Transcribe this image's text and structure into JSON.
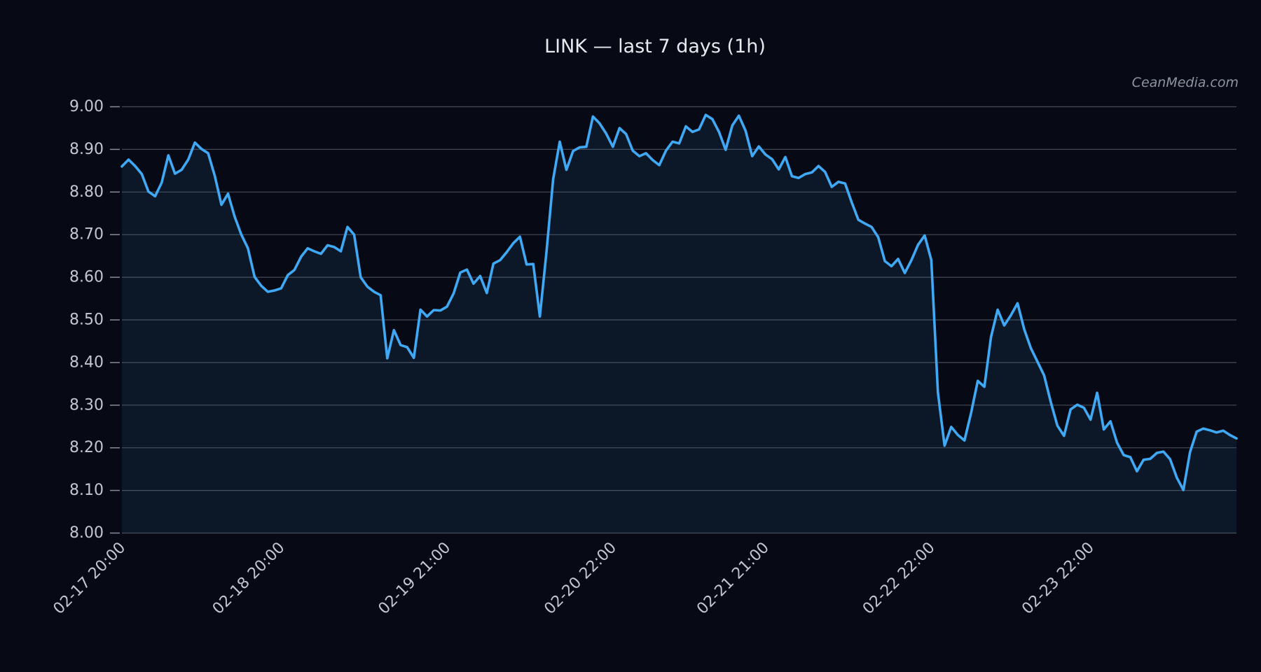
{
  "chart_data": {
    "type": "line",
    "title": "LINK — last 7 days (1h)",
    "watermark": "CeanMedia.com",
    "legend_position": "none",
    "grid": "horizontal",
    "x_axis": {
      "tick_labels": [
        "02-17 20:00",
        "02-18 20:00",
        "02-19 21:00",
        "02-20 22:00",
        "02-21 21:00",
        "02-22 22:00",
        "02-23 22:00"
      ],
      "tick_point_indices": [
        0,
        24,
        49,
        74,
        97,
        122,
        146
      ],
      "tick_rotation_deg": 45,
      "num_points": 169,
      "step": "1h"
    },
    "y_axis": {
      "tick_labels": [
        "8.00",
        "8.10",
        "8.20",
        "8.30",
        "8.40",
        "8.50",
        "8.60",
        "8.70",
        "8.80",
        "8.90",
        "9.00"
      ],
      "ylim": [
        8.0,
        9.0
      ]
    },
    "colors": {
      "line": "#3fa9f5",
      "area_fill": "rgba(63,169,245,0.09)",
      "background": "#070a14",
      "gridline": "#454a56",
      "tick_mark": "#878b9b",
      "tick_text": "#c3c6d1",
      "title_text": "#e7e9ee",
      "watermark_text": "#8e93a4"
    },
    "series": [
      {
        "name": "LINK",
        "values": [
          8.86,
          8.876,
          8.861,
          8.842,
          8.801,
          8.79,
          8.822,
          8.886,
          8.843,
          8.852,
          8.876,
          8.916,
          8.901,
          8.891,
          8.838,
          8.77,
          8.796,
          8.742,
          8.7,
          8.668,
          8.601,
          8.58,
          8.566,
          8.569,
          8.574,
          8.605,
          8.617,
          8.648,
          8.668,
          8.661,
          8.655,
          8.675,
          8.671,
          8.661,
          8.718,
          8.7,
          8.6,
          8.578,
          8.566,
          8.558,
          8.41,
          8.476,
          8.441,
          8.436,
          8.411,
          8.524,
          8.508,
          8.523,
          8.522,
          8.531,
          8.562,
          8.611,
          8.618,
          8.585,
          8.603,
          8.563,
          8.632,
          8.64,
          8.659,
          8.68,
          8.695,
          8.63,
          8.631,
          8.508,
          8.66,
          8.83,
          8.918,
          8.852,
          8.896,
          8.905,
          8.906,
          8.977,
          8.961,
          8.937,
          8.906,
          8.95,
          8.936,
          8.897,
          8.884,
          8.891,
          8.875,
          8.863,
          8.897,
          8.918,
          8.914,
          8.954,
          8.941,
          8.947,
          8.981,
          8.971,
          8.941,
          8.899,
          8.956,
          8.979,
          8.944,
          8.884,
          8.907,
          8.888,
          8.877,
          8.853,
          8.882,
          8.837,
          8.833,
          8.842,
          8.846,
          8.861,
          8.847,
          8.812,
          8.824,
          8.82,
          8.776,
          8.735,
          8.726,
          8.718,
          8.694,
          8.638,
          8.626,
          8.643,
          8.61,
          8.64,
          8.676,
          8.698,
          8.64,
          8.33,
          8.205,
          8.249,
          8.23,
          8.217,
          8.282,
          8.357,
          8.343,
          8.46,
          8.524,
          8.487,
          8.511,
          8.539,
          8.478,
          8.434,
          8.402,
          8.37,
          8.308,
          8.252,
          8.228,
          8.29,
          8.301,
          8.294,
          8.266,
          8.329,
          8.243,
          8.262,
          8.212,
          8.183,
          8.178,
          8.145,
          8.172,
          8.174,
          8.188,
          8.191,
          8.173,
          8.13,
          8.101,
          8.19,
          8.238,
          8.245,
          8.241,
          8.236,
          8.24,
          8.23,
          8.222
        ]
      }
    ]
  }
}
